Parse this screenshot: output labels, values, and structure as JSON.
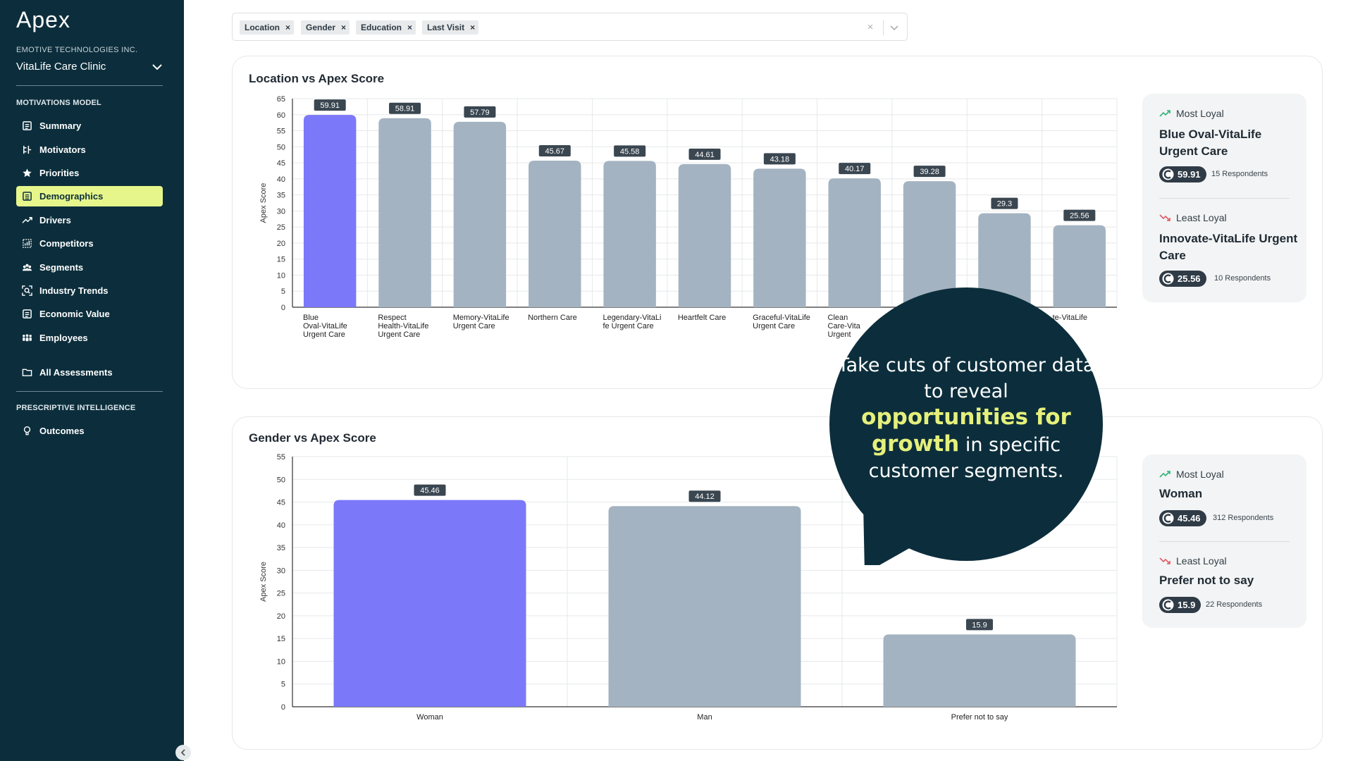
{
  "sidebar": {
    "logo": "Apex",
    "org": "EMOTIVE TECHNOLOGIES INC.",
    "clinic": "VitaLife Care Clinic",
    "section1": "MOTIVATIONS MODEL",
    "items": [
      {
        "label": "Summary",
        "icon": "summary-icon"
      },
      {
        "label": "Motivators",
        "icon": "motivators-icon"
      },
      {
        "label": "Priorities",
        "icon": "star-icon"
      },
      {
        "label": "Demographics",
        "icon": "demographics-icon",
        "active": true
      },
      {
        "label": "Drivers",
        "icon": "trend-icon"
      },
      {
        "label": "Competitors",
        "icon": "competitors-icon"
      },
      {
        "label": "Segments",
        "icon": "segments-icon"
      },
      {
        "label": "Industry Trends",
        "icon": "industry-trends-icon"
      },
      {
        "label": "Economic Value",
        "icon": "economic-value-icon"
      },
      {
        "label": "Employees",
        "icon": "employees-icon"
      }
    ],
    "all_assessments": "All Assessments",
    "section2": "PRESCRIPTIVE INTELLIGENCE",
    "outcomes": "Outcomes"
  },
  "filters": {
    "chips": [
      "Location",
      "Gender",
      "Education",
      "Last Visit"
    ],
    "remove": "×",
    "clear": "×"
  },
  "location_card": {
    "title": "Location vs Apex Score",
    "most": {
      "kind": "Most Loyal",
      "name": "Blue Oval-VitaLife Urgent Care",
      "score": "59.91",
      "respondents": "15 Respondents"
    },
    "least": {
      "kind": "Least Loyal",
      "name": "Innovate-VitaLife Urgent Care",
      "score": "25.56",
      "respondents": "10 Respondents"
    }
  },
  "gender_card": {
    "title": "Gender vs Apex Score",
    "most": {
      "kind": "Most Loyal",
      "name": "Woman",
      "score": "45.46",
      "respondents": "312 Respondents"
    },
    "least": {
      "kind": "Least Loyal",
      "name": "Prefer not to say",
      "score": "15.9",
      "respondents": "22 Respondents"
    }
  },
  "bubble": {
    "line1": "Take cuts of customer data to reveal",
    "highlight": "opportunities for growth",
    "line2": " in specific customer segments."
  },
  "colors": {
    "highlight_bar": "#7b78f9",
    "bar": "#a4b3c1",
    "sidebar": "#0c2e3c",
    "active_nav": "#e6f68b",
    "bubble": "#0c2e3c"
  },
  "chart_data": [
    {
      "type": "bar",
      "title": "Location vs Apex Score",
      "ylabel": "Apex Score",
      "ylim": [
        0,
        65
      ],
      "yticks": [
        0,
        5,
        10,
        15,
        20,
        25,
        30,
        35,
        40,
        45,
        50,
        55,
        60,
        65
      ],
      "categories": [
        [
          "Blue",
          "Oval-VitaLife",
          "Urgent Care"
        ],
        [
          "Respect",
          "Health-VitaLife",
          "Urgent Care"
        ],
        [
          "Memory-VitaLife",
          "Urgent Care"
        ],
        [
          "Northern Care"
        ],
        [
          "Legendary-VitaLi",
          "fe Urgent Care"
        ],
        [
          "Heartfelt Care"
        ],
        [
          "Graceful-VitaLife",
          "Urgent Care"
        ],
        [
          "Clean",
          "Care-Vita",
          "Urgent"
        ],
        [
          ""
        ],
        [
          ""
        ],
        [
          "te-VitaLife",
          "re"
        ]
      ],
      "values": [
        59.91,
        58.91,
        57.79,
        45.67,
        45.58,
        44.61,
        43.18,
        40.17,
        39.28,
        29.3,
        25.56
      ],
      "value_labels": [
        "59.91",
        "58.91",
        "57.79",
        "45.67",
        "45.58",
        "44.61",
        "43.18",
        "40.17",
        "39.28",
        "29.3",
        "25.56"
      ],
      "highlight_index": 0,
      "grid": true
    },
    {
      "type": "bar",
      "title": "Gender vs Apex Score",
      "ylabel": "Apex Score",
      "ylim": [
        0,
        55
      ],
      "yticks": [
        0,
        5,
        10,
        15,
        20,
        25,
        30,
        35,
        40,
        45,
        50,
        55
      ],
      "categories": [
        [
          "Woman"
        ],
        [
          "Man"
        ],
        [
          "Prefer not to say"
        ]
      ],
      "values": [
        45.46,
        44.12,
        15.9
      ],
      "value_labels": [
        "45.46",
        "44.12",
        "15.9"
      ],
      "highlight_index": 0,
      "grid": true
    }
  ]
}
